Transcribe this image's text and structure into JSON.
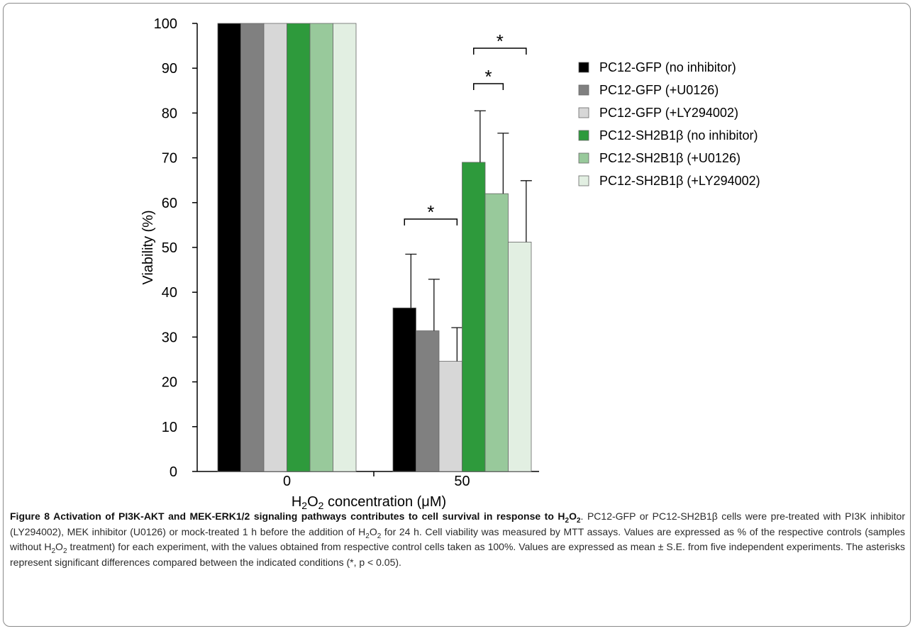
{
  "chart_data": {
    "type": "bar",
    "categories": [
      "0",
      "50"
    ],
    "series": [
      {
        "name": "PC12-GFP (no inhibitor)",
        "color": "#000000",
        "values": [
          100,
          36.5
        ],
        "errors": [
          0,
          12
        ]
      },
      {
        "name": "PC12-GFP (+U0126)",
        "color": "#808080",
        "values": [
          100,
          31.4
        ],
        "errors": [
          0,
          11.5
        ]
      },
      {
        "name": "PC12-GFP (+LY294002)",
        "color": "#d7d7d7",
        "values": [
          100,
          24.6
        ],
        "errors": [
          0,
          7.5
        ]
      },
      {
        "name": "PC12-SH2B1β (no inhibitor)",
        "color": "#2e9a3c",
        "values": [
          100,
          69
        ],
        "errors": [
          0,
          11.5
        ]
      },
      {
        "name": "PC12-SH2B1β (+U0126)",
        "color": "#98c99b",
        "values": [
          100,
          62
        ],
        "errors": [
          0,
          13.5
        ]
      },
      {
        "name": "PC12-SH2B1β (+LY294002)",
        "color": "#e2efe2",
        "values": [
          100,
          51.2
        ],
        "errors": [
          0,
          13.7
        ]
      }
    ],
    "ylim": [
      0,
      100
    ],
    "yticks": [
      0,
      10,
      20,
      30,
      40,
      50,
      60,
      70,
      80,
      90,
      100
    ],
    "ylabel": "Viability (%)",
    "xlabel": "H2O2 concentration (μM)",
    "legend_position": "right",
    "significance": [
      {
        "category": "50",
        "from_series": 0,
        "to_series": 2,
        "label": "*"
      },
      {
        "category": "50",
        "from_series": 3,
        "to_series": 4,
        "label": "*"
      },
      {
        "category": "50",
        "from_series": 3,
        "to_series": 5,
        "label": "*"
      }
    ]
  },
  "caption": {
    "title_parts": [
      "Figure 8 Activation of PI3K-AKT and MEK-ERK1/2 signaling pathways contributes to cell survival in response to H",
      "2",
      "O",
      "2",
      "."
    ],
    "body_parts": [
      " PC12-GFP or PC12-SH2B1β cells were pre-treated with PI3K inhibitor (LY294002), MEK inhibitor (U0126) or mock-treated 1 h before the addition of H",
      "2",
      "O",
      "2",
      " for 24 h. Cell viability was measured by MTT assays. Values are expressed as % of the respective controls (samples without H",
      "2",
      "O",
      "2",
      " treatment) for each experiment, with the values obtained from respective control cells taken as 100%. Values are expressed as mean ± S.E. from five independent experiments. The asterisks represent significant differences compared between the indicated conditions (*, p < 0.05)."
    ]
  }
}
